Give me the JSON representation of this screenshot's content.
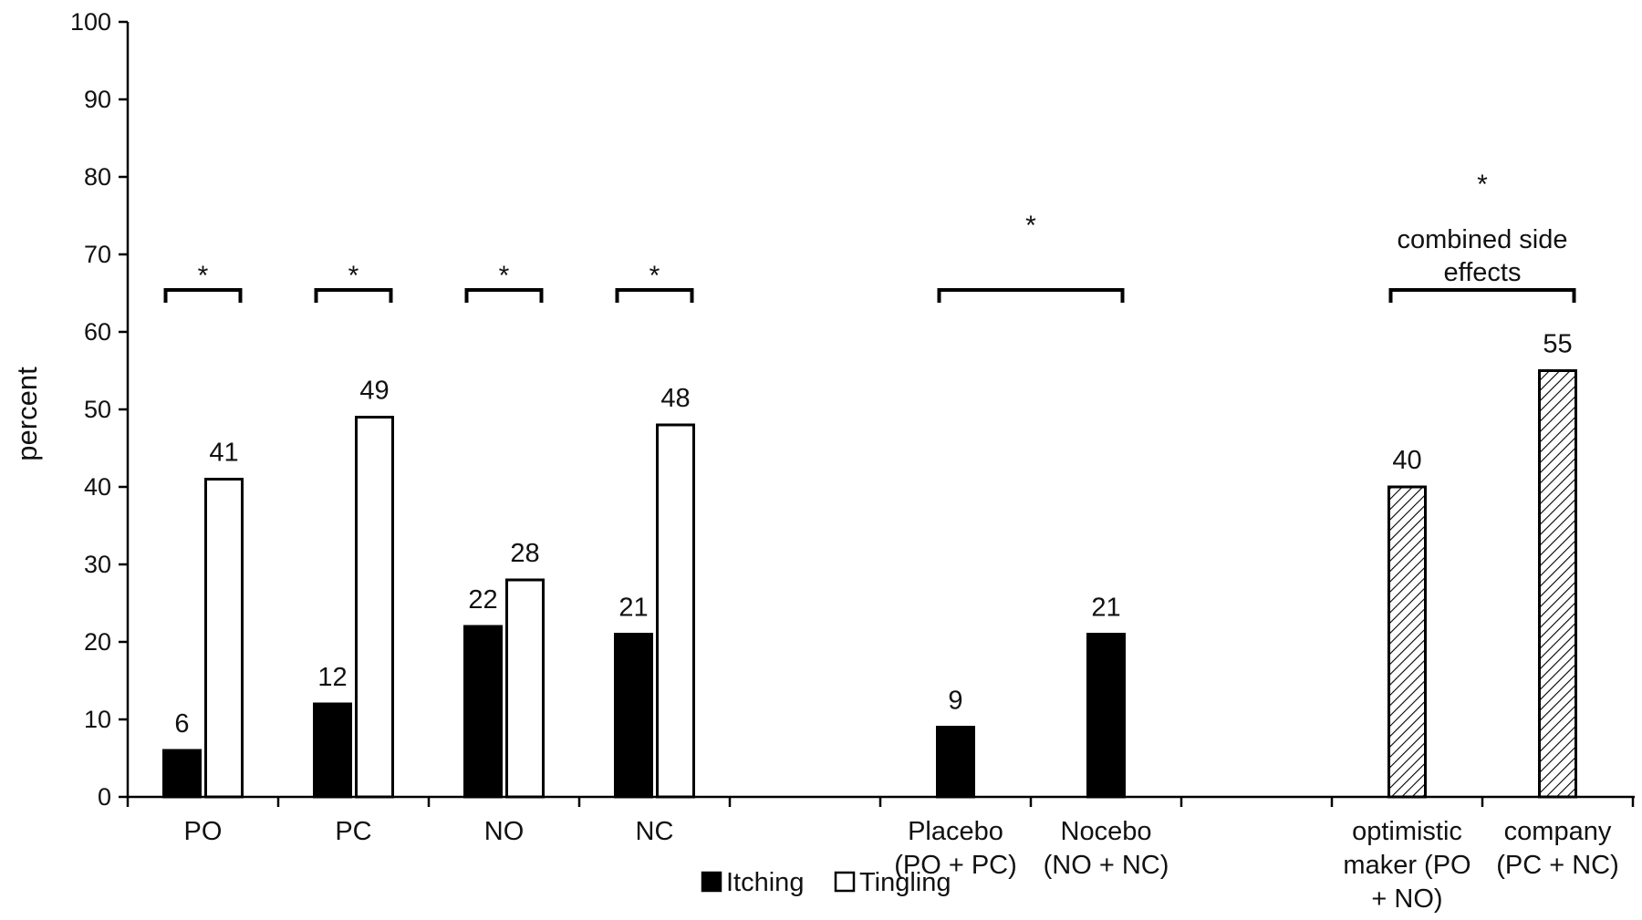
{
  "chart_data": {
    "type": "bar",
    "ylabel": "percent",
    "ylim": [
      0,
      100
    ],
    "yticks": [
      0,
      10,
      20,
      30,
      40,
      50,
      60,
      70,
      80,
      90,
      100
    ],
    "grid": false,
    "legend_position": "bottom-center",
    "legend": [
      {
        "name": "Itching",
        "fill": "#000000"
      },
      {
        "name": "Tingling",
        "fill": "#ffffff"
      }
    ],
    "categories": [
      {
        "lines": [
          "PO"
        ]
      },
      {
        "lines": [
          "PC"
        ]
      },
      {
        "lines": [
          "NO"
        ]
      },
      {
        "lines": [
          "NC"
        ]
      },
      {
        "lines": []
      },
      {
        "lines": [
          "Placebo",
          "(PO + PC)"
        ]
      },
      {
        "lines": [
          "Nocebo",
          "(NO + NC)"
        ]
      },
      {
        "lines": []
      },
      {
        "lines": [
          "optimistic",
          "maker (PO",
          "+ NO)"
        ]
      },
      {
        "lines": [
          "company",
          "(PC + NC)"
        ]
      }
    ],
    "bars": [
      {
        "category": 0,
        "slot": "left",
        "series": "Itching",
        "value": 6,
        "label": "6"
      },
      {
        "category": 0,
        "slot": "right",
        "series": "Tingling",
        "value": 41,
        "label": "41"
      },
      {
        "category": 1,
        "slot": "left",
        "series": "Itching",
        "value": 12,
        "label": "12"
      },
      {
        "category": 1,
        "slot": "right",
        "series": "Tingling",
        "value": 49,
        "label": "49"
      },
      {
        "category": 2,
        "slot": "left",
        "series": "Itching",
        "value": 22,
        "label": "22"
      },
      {
        "category": 2,
        "slot": "right",
        "series": "Tingling",
        "value": 28,
        "label": "28"
      },
      {
        "category": 3,
        "slot": "left",
        "series": "Itching",
        "value": 21,
        "label": "21"
      },
      {
        "category": 3,
        "slot": "right",
        "series": "Tingling",
        "value": 48,
        "label": "48"
      },
      {
        "category": 5,
        "slot": "center",
        "series": "Itching",
        "value": 9,
        "label": "9"
      },
      {
        "category": 6,
        "slot": "center",
        "series": "Itching",
        "value": 21,
        "label": "21"
      },
      {
        "category": 8,
        "slot": "center",
        "series": "combined side effects",
        "value": 40,
        "label": "40"
      },
      {
        "category": 9,
        "slot": "center",
        "series": "combined side effects",
        "value": 55,
        "label": "55"
      }
    ],
    "annotations": [
      {
        "from_bar": 0,
        "to_bar": 1,
        "text": "*"
      },
      {
        "from_bar": 2,
        "to_bar": 3,
        "text": "*"
      },
      {
        "from_bar": 4,
        "to_bar": 5,
        "text": "*"
      },
      {
        "from_bar": 6,
        "to_bar": 7,
        "text": "*"
      },
      {
        "from_bar": 8,
        "to_bar": 9,
        "text": "*"
      },
      {
        "from_bar": 10,
        "to_bar": 11,
        "text": "*",
        "note_lines": [
          "combined side",
          "effects"
        ]
      }
    ],
    "colors": {
      "itching": "#000000",
      "tingling": "#ffffff",
      "combined": "hatched",
      "outline": "#000000"
    }
  }
}
